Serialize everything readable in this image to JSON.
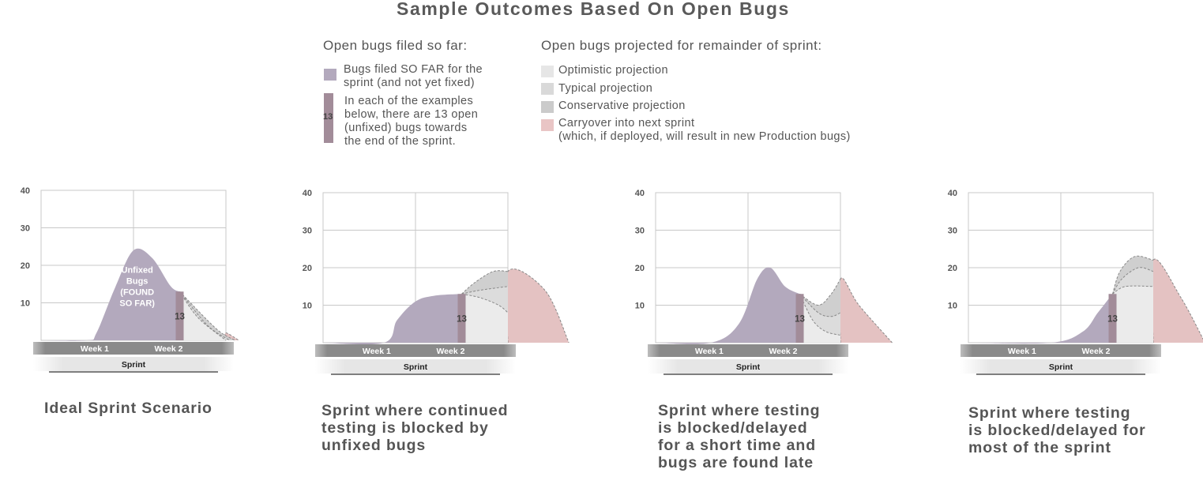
{
  "title": "Sample Outcomes Based On Open Bugs",
  "legend": {
    "left_heading": "Open bugs filed so far:",
    "left_items": [
      {
        "label": "Bugs filed SO FAR for the\nsprint (and not yet fixed)",
        "color": "#b3a9bd"
      },
      {
        "label": "In each of the examples\nbelow, there are 13 open\n(unfixed) bugs towards\nthe end of the sprint.",
        "color": "#a28c99",
        "bar_label": "13"
      }
    ],
    "right_heading": "Open bugs projected for remainder of sprint:",
    "right_items": [
      {
        "label": "Optimistic projection",
        "color": "#e6e6e6"
      },
      {
        "label": "Typical projection",
        "color": "#d9d9d9"
      },
      {
        "label": "Conservative projection",
        "color": "#cbcbcb"
      },
      {
        "label": "Carryover into next sprint\n(which, if deployed, will result in new Production bugs)",
        "color": "#e9c5c5"
      }
    ]
  },
  "colors": {
    "so_far": "#b3a9bd",
    "marker": "#a28c99",
    "optimistic": "#ebebeb",
    "typical": "#dcdcdc",
    "conservative": "#cfcfcf",
    "carryover": "#e4c2c2",
    "grid": "#c8c8c8",
    "week_bar": "#8a8a8a"
  },
  "chart_data": [
    {
      "type": "area",
      "title": "Ideal Sprint Scenario",
      "y_ticks": [
        "40",
        "30",
        "20",
        "10"
      ],
      "ylim": [
        0,
        40
      ],
      "x_labels": [
        "Week 1",
        "Week 2"
      ],
      "axis_label": "Sprint",
      "marker_value": 13,
      "marker_label": "13",
      "area_label": "Unfixed\nBugs\n(FOUND\nSO FAR)",
      "so_far": [
        [
          0.0,
          0
        ],
        [
          0.25,
          0
        ],
        [
          0.3,
          2
        ],
        [
          0.4,
          14
        ],
        [
          0.5,
          24
        ],
        [
          0.6,
          22
        ],
        [
          0.7,
          14.5
        ],
        [
          0.75,
          13
        ]
      ],
      "optimistic": [
        [
          0.75,
          13
        ],
        [
          0.85,
          6
        ],
        [
          1.0,
          0
        ]
      ],
      "typical": [
        [
          0.75,
          13
        ],
        [
          0.9,
          4
        ],
        [
          1.02,
          0
        ]
      ],
      "conservative": [
        [
          0.75,
          13
        ],
        [
          0.95,
          3
        ],
        [
          1.05,
          0
        ]
      ],
      "carryover": [
        [
          1.0,
          0
        ],
        [
          1.0,
          2
        ],
        [
          1.07,
          0
        ]
      ]
    },
    {
      "type": "area",
      "title": "Sprint where continued\ntesting is blocked by\nunfixed bugs",
      "y_ticks": [
        "40",
        "30",
        "20",
        "10"
      ],
      "ylim": [
        0,
        40
      ],
      "x_labels": [
        "Week 1",
        "Week 2"
      ],
      "axis_label": "Sprint",
      "marker_value": 13,
      "marker_label": "13",
      "so_far": [
        [
          0.0,
          0
        ],
        [
          0.33,
          0
        ],
        [
          0.4,
          6
        ],
        [
          0.5,
          11
        ],
        [
          0.6,
          12.5
        ],
        [
          0.75,
          13
        ]
      ],
      "optimistic": [
        [
          0.75,
          13
        ],
        [
          0.85,
          12
        ],
        [
          0.95,
          10
        ],
        [
          1.0,
          8
        ]
      ],
      "typical": [
        [
          0.75,
          13
        ],
        [
          0.85,
          14
        ],
        [
          1.0,
          15
        ]
      ],
      "conservative": [
        [
          0.75,
          13
        ],
        [
          0.82,
          16
        ],
        [
          0.92,
          19
        ],
        [
          1.0,
          19
        ]
      ],
      "carryover": [
        [
          1.0,
          0
        ],
        [
          1.0,
          19
        ],
        [
          1.2,
          14
        ],
        [
          1.33,
          0
        ]
      ]
    },
    {
      "type": "area",
      "title": "Sprint where testing\nis blocked/delayed\nfor a short time and\nbugs are found late",
      "y_ticks": [
        "40",
        "30",
        "20",
        "10"
      ],
      "ylim": [
        0,
        40
      ],
      "x_labels": [
        "Week 1",
        "Week 2"
      ],
      "axis_label": "Sprint",
      "marker_value": 13,
      "marker_label": "13",
      "so_far": [
        [
          0.0,
          0
        ],
        [
          0.3,
          0
        ],
        [
          0.45,
          5
        ],
        [
          0.55,
          17
        ],
        [
          0.62,
          20
        ],
        [
          0.7,
          15
        ],
        [
          0.78,
          13
        ]
      ],
      "optimistic": [
        [
          0.78,
          13
        ],
        [
          0.85,
          6
        ],
        [
          0.92,
          3
        ],
        [
          1.0,
          2
        ]
      ],
      "typical": [
        [
          0.78,
          13
        ],
        [
          0.88,
          8
        ],
        [
          0.95,
          7
        ],
        [
          1.0,
          8
        ]
      ],
      "conservative": [
        [
          0.78,
          13
        ],
        [
          0.88,
          10
        ],
        [
          0.95,
          13
        ],
        [
          1.0,
          17
        ]
      ],
      "carryover": [
        [
          1.0,
          0
        ],
        [
          1.0,
          17
        ],
        [
          1.1,
          10
        ],
        [
          1.28,
          0
        ]
      ]
    },
    {
      "type": "area",
      "title": "Sprint where testing\nis blocked/delayed for\nmost of the sprint",
      "y_ticks": [
        "40",
        "30",
        "20",
        "10"
      ],
      "ylim": [
        0,
        40
      ],
      "x_labels": [
        "Week 1",
        "Week 2"
      ],
      "axis_label": "Sprint",
      "marker_value": 13,
      "marker_label": "13",
      "so_far": [
        [
          0.0,
          0
        ],
        [
          0.45,
          0
        ],
        [
          0.62,
          3
        ],
        [
          0.7,
          8
        ],
        [
          0.78,
          13
        ]
      ],
      "optimistic": [
        [
          0.78,
          13
        ],
        [
          0.85,
          15
        ],
        [
          1.0,
          15
        ]
      ],
      "typical": [
        [
          0.78,
          13
        ],
        [
          0.83,
          17
        ],
        [
          0.92,
          20
        ],
        [
          1.0,
          19
        ]
      ],
      "conservative": [
        [
          0.78,
          13
        ],
        [
          0.82,
          19
        ],
        [
          0.9,
          23
        ],
        [
          1.0,
          22
        ]
      ],
      "carryover": [
        [
          1.0,
          0
        ],
        [
          1.0,
          22
        ],
        [
          1.15,
          12
        ],
        [
          1.28,
          0
        ]
      ]
    }
  ]
}
